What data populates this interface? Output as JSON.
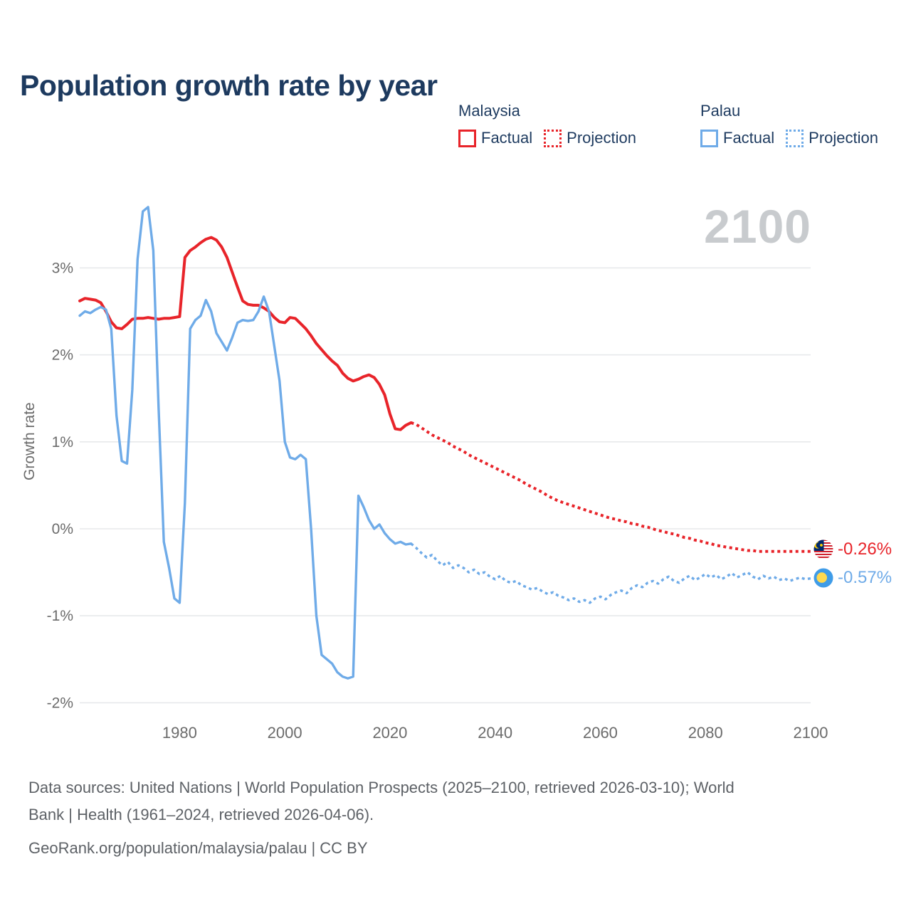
{
  "title": "Population growth rate by year",
  "watermark": "2100",
  "legend": {
    "malaysia": {
      "label": "Malaysia",
      "factual": "Factual",
      "projection": "Projection"
    },
    "palau": {
      "label": "Palau",
      "factual": "Factual",
      "projection": "Projection"
    }
  },
  "axes": {
    "ylabel": "Growth rate",
    "y_tick_labels": [
      "3%",
      "2%",
      "1%",
      "0%",
      "-1%",
      "-2%"
    ],
    "x_tick_labels": [
      "1980",
      "2000",
      "2020",
      "2040",
      "2060",
      "2080",
      "2100"
    ]
  },
  "end_labels": {
    "malaysia": {
      "flag": "malaysia-flag",
      "value": "-0.26%"
    },
    "palau": {
      "flag": "palau-flag",
      "value": "-0.57%"
    }
  },
  "footer": {
    "line1": "Data sources: United Nations | World Population Prospects (2025–2100, retrieved 2026-03-10); World",
    "line2": "Bank | Health (1961–2024, retrieved 2026-04-06).",
    "line3": "GeoRank.org/population/malaysia/palau | CC BY"
  },
  "colors": {
    "malaysia": "#e8242a",
    "palau": "#6fabe8",
    "navy": "#1d3a5f",
    "axis_text": "#6b6b6b",
    "footer_text": "#5d6166",
    "grid": "#e7e9eb",
    "watermark": "#c8cbce",
    "palau_flag_blue": "#3f9ce8",
    "palau_flag_yellow": "#ffd94f",
    "malaysia_flag_red": "#d0212d",
    "malaysia_flag_blue": "#012a6c",
    "malaysia_flag_yellow": "#ffd100"
  },
  "chart_data": {
    "type": "line",
    "title": "Population growth rate by year",
    "xlabel": "",
    "ylabel": "Growth rate",
    "x_range": [
      1961,
      2100
    ],
    "ylim": [
      -2.2,
      3.75
    ],
    "y_ticks": [
      3,
      2,
      1,
      0,
      -1,
      -2
    ],
    "x_ticks": [
      1980,
      2000,
      2020,
      2040,
      2060,
      2080,
      2100
    ],
    "grid": "horizontal",
    "legend_position": "top-right",
    "series": [
      {
        "name": "Malaysia Factual",
        "style": "solid",
        "color_key": "malaysia",
        "start_year": 1961,
        "values": [
          2.62,
          2.65,
          2.64,
          2.63,
          2.6,
          2.5,
          2.38,
          2.31,
          2.3,
          2.35,
          2.41,
          2.42,
          2.42,
          2.43,
          2.42,
          2.41,
          2.42,
          2.42,
          2.43,
          2.44,
          3.12,
          3.2,
          3.24,
          3.29,
          3.33,
          3.35,
          3.32,
          3.24,
          3.12,
          2.95,
          2.78,
          2.62,
          2.58,
          2.57,
          2.57,
          2.54,
          2.5,
          2.43,
          2.38,
          2.37,
          2.43,
          2.42,
          2.36,
          2.3,
          2.22,
          2.13,
          2.06,
          1.99,
          1.93,
          1.88,
          1.79,
          1.73,
          1.7,
          1.72,
          1.75,
          1.77,
          1.74,
          1.66,
          1.54,
          1.32,
          1.15,
          1.14,
          1.19,
          1.22
        ]
      },
      {
        "name": "Malaysia Projection",
        "style": "dotted",
        "color_key": "malaysia",
        "start_year": 2024,
        "values": [
          1.22,
          1.2,
          1.16,
          1.12,
          1.08,
          1.05,
          1.02,
          0.99,
          0.95,
          0.92,
          0.89,
          0.85,
          0.82,
          0.79,
          0.76,
          0.73,
          0.7,
          0.67,
          0.64,
          0.61,
          0.58,
          0.55,
          0.51,
          0.48,
          0.45,
          0.42,
          0.38,
          0.35,
          0.32,
          0.3,
          0.28,
          0.26,
          0.24,
          0.22,
          0.2,
          0.18,
          0.16,
          0.14,
          0.12,
          0.11,
          0.09,
          0.08,
          0.06,
          0.05,
          0.03,
          0.02,
          0.0,
          -0.02,
          -0.03,
          -0.05,
          -0.06,
          -0.08,
          -0.1,
          -0.11,
          -0.13,
          -0.14,
          -0.16,
          -0.17,
          -0.19,
          -0.2,
          -0.21,
          -0.22,
          -0.23,
          -0.24,
          -0.25,
          -0.25,
          -0.26,
          -0.26,
          -0.26,
          -0.26,
          -0.26,
          -0.26,
          -0.26,
          -0.26,
          -0.26,
          -0.26,
          -0.26
        ]
      },
      {
        "name": "Palau Factual",
        "style": "solid",
        "color_key": "palau",
        "start_year": 1961,
        "values": [
          2.45,
          2.5,
          2.48,
          2.52,
          2.55,
          2.52,
          2.3,
          1.3,
          0.78,
          0.75,
          1.6,
          3.1,
          3.65,
          3.7,
          3.2,
          1.4,
          -0.15,
          -0.45,
          -0.8,
          -0.85,
          0.3,
          2.3,
          2.4,
          2.45,
          2.63,
          2.5,
          2.25,
          2.15,
          2.05,
          2.2,
          2.37,
          2.4,
          2.39,
          2.4,
          2.5,
          2.67,
          2.5,
          2.1,
          1.7,
          1.0,
          0.82,
          0.8,
          0.85,
          0.8,
          0.0,
          -1.0,
          -1.45,
          -1.5,
          -1.55,
          -1.65,
          -1.7,
          -1.72,
          -1.7,
          0.38,
          0.25,
          0.1,
          0.0,
          0.05,
          -0.05,
          -0.12,
          -0.17,
          -0.15,
          -0.18,
          -0.17
        ]
      },
      {
        "name": "Palau Projection",
        "style": "dotted",
        "color_key": "palau",
        "start_year": 2024,
        "values": [
          -0.17,
          -0.22,
          -0.28,
          -0.33,
          -0.3,
          -0.37,
          -0.42,
          -0.38,
          -0.45,
          -0.42,
          -0.45,
          -0.5,
          -0.47,
          -0.52,
          -0.5,
          -0.55,
          -0.58,
          -0.54,
          -0.6,
          -0.62,
          -0.6,
          -0.65,
          -0.67,
          -0.7,
          -0.68,
          -0.72,
          -0.75,
          -0.73,
          -0.77,
          -0.79,
          -0.82,
          -0.8,
          -0.84,
          -0.82,
          -0.85,
          -0.8,
          -0.78,
          -0.81,
          -0.76,
          -0.73,
          -0.71,
          -0.74,
          -0.68,
          -0.65,
          -0.67,
          -0.62,
          -0.6,
          -0.63,
          -0.58,
          -0.55,
          -0.6,
          -0.62,
          -0.57,
          -0.54,
          -0.59,
          -0.56,
          -0.52,
          -0.56,
          -0.53,
          -0.58,
          -0.55,
          -0.51,
          -0.56,
          -0.53,
          -0.5,
          -0.55,
          -0.58,
          -0.54,
          -0.57,
          -0.55,
          -0.59,
          -0.57,
          -0.6,
          -0.58,
          -0.56,
          -0.58,
          -0.57
        ]
      }
    ]
  }
}
